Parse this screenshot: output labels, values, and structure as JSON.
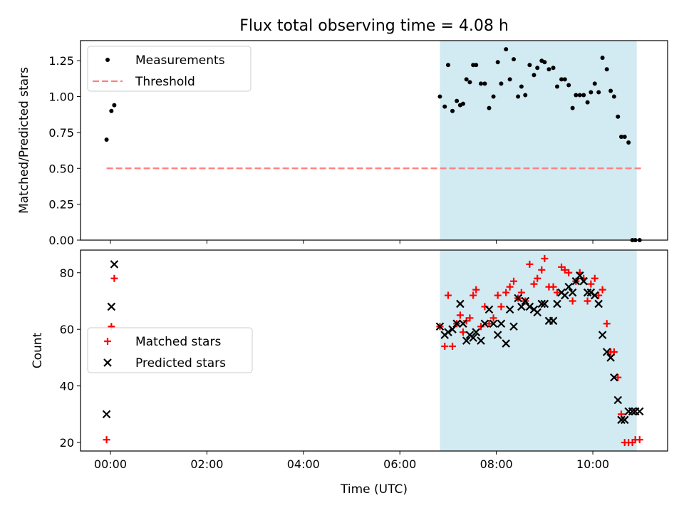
{
  "title": "Flux total observing time = 4.08 h",
  "xlabel": "Time (UTC)",
  "x_ticks": [
    "00:00",
    "02:00",
    "04:00",
    "06:00",
    "08:00",
    "10:00"
  ],
  "x_tick_hours": [
    0,
    2,
    4,
    6,
    8,
    10
  ],
  "xlim_hours": [
    -0.62,
    11.55
  ],
  "shaded_span_hours": [
    6.83,
    10.91
  ],
  "colors": {
    "span": "#add8e6",
    "threshold": "#ff7f7f",
    "matched": "#ff0000",
    "predicted": "#000000",
    "measurement": "#000000"
  },
  "chart_data": [
    {
      "type": "scatter",
      "ylabel": "Matched/Predicted stars",
      "ylim": [
        0,
        1.39
      ],
      "y_ticks": [
        "0.00",
        "0.25",
        "0.50",
        "0.75",
        "1.00",
        "1.25"
      ],
      "y_tick_values": [
        0,
        0.25,
        0.5,
        0.75,
        1.0,
        1.25
      ],
      "legend": {
        "placement": "upper-left",
        "entries": [
          "Measurements",
          "Threshold"
        ]
      },
      "threshold": {
        "name": "Threshold",
        "y": 0.5,
        "x_range": [
          -0.08,
          11.0
        ],
        "style": "dashed"
      },
      "series": [
        {
          "name": "Measurements",
          "marker": "dot",
          "x": [
            -0.08,
            0.02,
            0.08,
            6.83,
            6.93,
            7.0,
            7.09,
            7.18,
            7.25,
            7.31,
            7.38,
            7.45,
            7.52,
            7.58,
            7.68,
            7.76,
            7.85,
            7.94,
            8.03,
            8.1,
            8.2,
            8.28,
            8.36,
            8.45,
            8.52,
            8.6,
            8.69,
            8.78,
            8.85,
            8.94,
            9.0,
            9.09,
            9.18,
            9.26,
            9.35,
            9.42,
            9.5,
            9.58,
            9.65,
            9.73,
            9.81,
            9.89,
            9.96,
            10.04,
            10.12,
            10.2,
            10.29,
            10.37,
            10.44,
            10.52,
            10.59,
            10.66,
            10.74,
            10.82,
            10.88,
            10.97
          ],
          "y": [
            0.7,
            0.9,
            0.94,
            1.0,
            0.93,
            1.22,
            0.9,
            0.97,
            0.94,
            0.95,
            1.12,
            1.1,
            1.22,
            1.22,
            1.09,
            1.09,
            0.92,
            1.0,
            1.24,
            1.09,
            1.33,
            1.12,
            1.26,
            1.0,
            1.07,
            1.01,
            1.22,
            1.15,
            1.2,
            1.25,
            1.24,
            1.19,
            1.2,
            1.07,
            1.12,
            1.12,
            1.08,
            0.92,
            1.01,
            1.01,
            1.01,
            0.96,
            1.03,
            1.09,
            1.03,
            1.27,
            1.19,
            1.04,
            1.0,
            0.86,
            0.72,
            0.72,
            0.68,
            0.0,
            0.0,
            0.0
          ]
        }
      ]
    },
    {
      "type": "scatter",
      "ylabel": "Count",
      "ylim": [
        17,
        88
      ],
      "y_ticks": [
        "20",
        "40",
        "60",
        "80"
      ],
      "y_tick_values": [
        20,
        40,
        60,
        80
      ],
      "legend": {
        "placement": "center-left",
        "entries": [
          "Matched stars",
          "Predicted stars"
        ]
      },
      "series": [
        {
          "name": "Matched stars",
          "marker": "plus",
          "x": [
            -0.08,
            0.02,
            0.08,
            6.83,
            6.93,
            7.0,
            7.09,
            7.18,
            7.25,
            7.31,
            7.38,
            7.45,
            7.52,
            7.58,
            7.68,
            7.76,
            7.85,
            7.94,
            8.03,
            8.1,
            8.2,
            8.28,
            8.36,
            8.45,
            8.52,
            8.6,
            8.69,
            8.78,
            8.85,
            8.94,
            9.0,
            9.09,
            9.18,
            9.26,
            9.35,
            9.42,
            9.5,
            9.58,
            9.65,
            9.73,
            9.81,
            9.89,
            9.96,
            10.04,
            10.12,
            10.2,
            10.29,
            10.37,
            10.44,
            10.52,
            10.59,
            10.66,
            10.74,
            10.82,
            10.88,
            10.97
          ],
          "y": [
            21,
            61,
            78,
            61,
            54,
            72,
            54,
            62,
            65,
            59,
            63,
            64,
            72,
            74,
            61,
            68,
            62,
            64,
            72,
            68,
            73,
            75,
            77,
            71,
            73,
            70,
            83,
            76,
            78,
            81,
            85,
            75,
            75,
            73,
            82,
            81,
            80,
            70,
            77,
            80,
            78,
            70,
            76,
            78,
            72,
            74,
            62,
            52,
            52,
            43,
            30,
            20,
            20,
            20,
            21,
            21
          ]
        },
        {
          "name": "Predicted stars",
          "marker": "x",
          "x": [
            -0.08,
            0.02,
            0.08,
            6.83,
            6.93,
            7.0,
            7.09,
            7.18,
            7.25,
            7.31,
            7.38,
            7.45,
            7.52,
            7.58,
            7.68,
            7.76,
            7.85,
            7.94,
            8.03,
            8.1,
            8.2,
            8.28,
            8.36,
            8.45,
            8.52,
            8.6,
            8.69,
            8.78,
            8.85,
            8.94,
            9.0,
            9.09,
            9.18,
            9.26,
            9.35,
            9.42,
            9.5,
            9.58,
            9.65,
            9.73,
            9.81,
            9.89,
            9.96,
            10.04,
            10.12,
            10.2,
            10.29,
            10.37,
            10.44,
            10.52,
            10.59,
            10.66,
            10.74,
            10.82,
            10.88,
            10.97
          ],
          "y": [
            30,
            68,
            83,
            61,
            58,
            59,
            60,
            62,
            69,
            62,
            56,
            58,
            57,
            59,
            56,
            62,
            67,
            62,
            58,
            62,
            55,
            67,
            61,
            71,
            68,
            70,
            68,
            67,
            66,
            69,
            69,
            63,
            63,
            69,
            73,
            72,
            75,
            73,
            77,
            79,
            77,
            73,
            73,
            72,
            69,
            58,
            52,
            50,
            43,
            35,
            28,
            28,
            31,
            31,
            31,
            31
          ]
        }
      ]
    }
  ]
}
